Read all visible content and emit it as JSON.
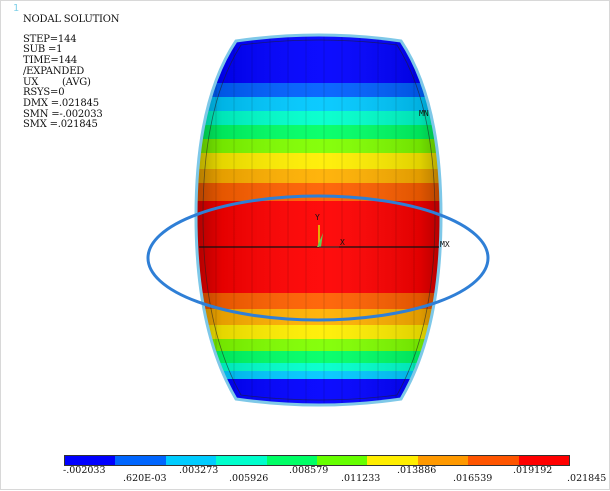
{
  "window_number": "1",
  "info": {
    "title": "NODAL SOLUTION",
    "lines": [
      "STEP=144",
      "SUB =1",
      "TIME=144",
      "/EXPANDED",
      "UX        (AVG)",
      "RSYS=0",
      "DMX =.021845",
      "SMN =-.002033",
      "SMX =.021845"
    ]
  },
  "markers": {
    "mn": "MN",
    "mx": "MX",
    "axis_y": "Y",
    "axis_x": "X"
  },
  "colors": {
    "highlight_ellipse": "#2f7fd6",
    "model_outline": "#7ec8e8",
    "bands": [
      "#0000ff",
      "#0060ff",
      "#00c8ff",
      "#00ffcc",
      "#00ff7f",
      "#7fff00",
      "#ffff00",
      "#ffb000",
      "#ff6000",
      "#ff0000"
    ]
  },
  "legend": {
    "colors": [
      "#0000ff",
      "#0066ff",
      "#00ccff",
      "#00ffcc",
      "#00ff66",
      "#66ff00",
      "#ffee00",
      "#ff9900",
      "#ff5500",
      "#ff0000"
    ],
    "upper_labels": [
      "-.002033",
      ".003273",
      ".008579",
      ".013886",
      ".019192"
    ],
    "lower_labels": [
      ".620E-03",
      ".005926",
      ".011233",
      ".016539",
      ".021845"
    ]
  }
}
